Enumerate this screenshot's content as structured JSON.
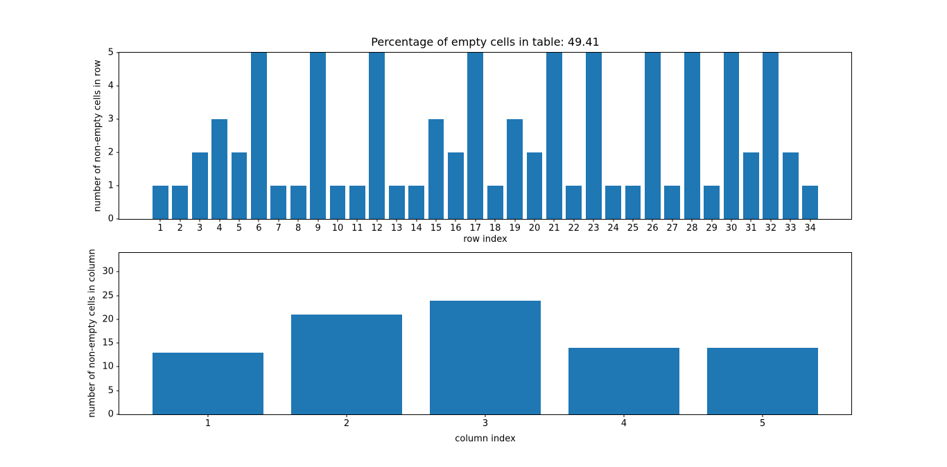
{
  "figure": {
    "background": "#ffffff"
  },
  "chart_data": [
    {
      "type": "bar",
      "title": "Percentage of empty cells in table: 49.41",
      "xlabel": "row index",
      "ylabel": "number of non-empty cells in row",
      "categories": [
        1,
        2,
        3,
        4,
        5,
        6,
        7,
        8,
        9,
        10,
        11,
        12,
        13,
        14,
        15,
        16,
        17,
        18,
        19,
        20,
        21,
        22,
        23,
        24,
        25,
        26,
        27,
        28,
        29,
        30,
        31,
        32,
        33,
        34
      ],
      "values": [
        1,
        1,
        2,
        3,
        2,
        5,
        1,
        1,
        5,
        1,
        1,
        5,
        1,
        1,
        3,
        2,
        5,
        1,
        3,
        2,
        5,
        1,
        5,
        1,
        1,
        5,
        1,
        5,
        1,
        5,
        2,
        5,
        2,
        1
      ],
      "bar_color": "#1f77b4",
      "bar_width": 0.8,
      "xlim": [
        -1.09,
        36.09
      ],
      "ylim": [
        0,
        5
      ],
      "yticks": [
        0,
        1,
        2,
        3,
        4,
        5
      ],
      "grid": false,
      "legend": null
    },
    {
      "type": "bar",
      "title": "",
      "xlabel": "column index",
      "ylabel": "number of non-empty cells in column",
      "categories": [
        1,
        2,
        3,
        4,
        5
      ],
      "values": [
        13,
        21,
        24,
        14,
        14
      ],
      "bar_color": "#1f77b4",
      "bar_width": 0.8,
      "xlim": [
        0.36,
        5.64
      ],
      "ylim": [
        0,
        34
      ],
      "yticks": [
        0,
        5,
        10,
        15,
        20,
        25,
        30
      ],
      "grid": false,
      "legend": null
    }
  ]
}
